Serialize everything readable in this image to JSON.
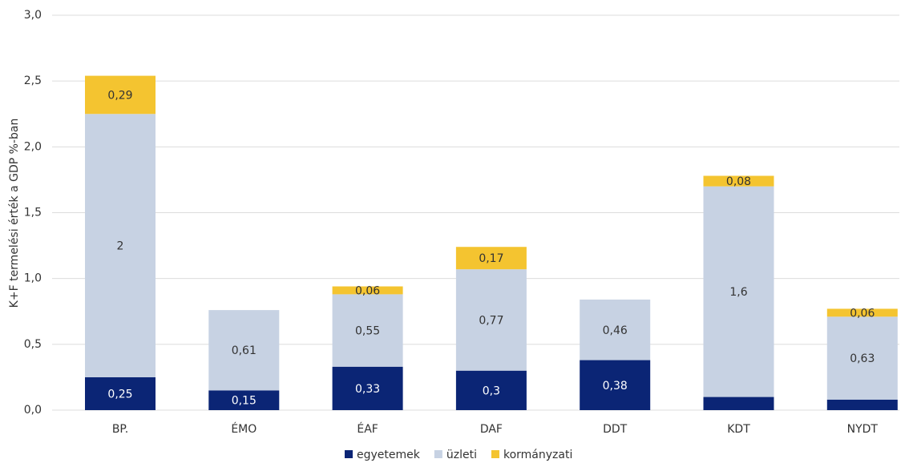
{
  "chart_data": {
    "type": "stacked_bar",
    "y_label": "K+F termelési érték a GDP %-ban",
    "categories": [
      "BP.",
      "ÉMO",
      "ÉAF",
      "DAF",
      "DDT",
      "KDT",
      "NYDT"
    ],
    "series": [
      {
        "name": "egyetemek",
        "color": "#0b2575",
        "values": [
          0.25,
          0.15,
          0.33,
          0.3,
          0.38,
          0.1,
          0.08
        ],
        "value_labels": [
          "0,25",
          "0,15",
          "0,33",
          "0,3",
          "0,38",
          null,
          null
        ]
      },
      {
        "name": "üzleti",
        "color": "#c7d2e3",
        "values": [
          2,
          0.61,
          0.55,
          0.77,
          0.46,
          1.6,
          0.63
        ],
        "value_labels": [
          "2",
          "0,61",
          "0,55",
          "0,77",
          "0,46",
          "1,6",
          "0,63"
        ]
      },
      {
        "name": "kormányzati",
        "color": "#f4c430",
        "values": [
          0.29,
          null,
          0.06,
          0.17,
          null,
          0.08,
          0.06
        ],
        "value_labels": [
          "0,29",
          null,
          "0,06",
          "0,17",
          null,
          "0,08",
          "0,06"
        ]
      }
    ],
    "ylim": [
      0,
      3
    ],
    "yticks": [
      {
        "value": 0,
        "label": "0,0"
      },
      {
        "value": 0.5,
        "label": "0,5"
      },
      {
        "value": 1,
        "label": "1,0"
      },
      {
        "value": 1.5,
        "label": "1,5"
      },
      {
        "value": 2,
        "label": "2,0"
      },
      {
        "value": 2.5,
        "label": "2,5"
      },
      {
        "value": 3,
        "label": "3,0"
      }
    ],
    "grid": true,
    "legend": "bottom"
  }
}
